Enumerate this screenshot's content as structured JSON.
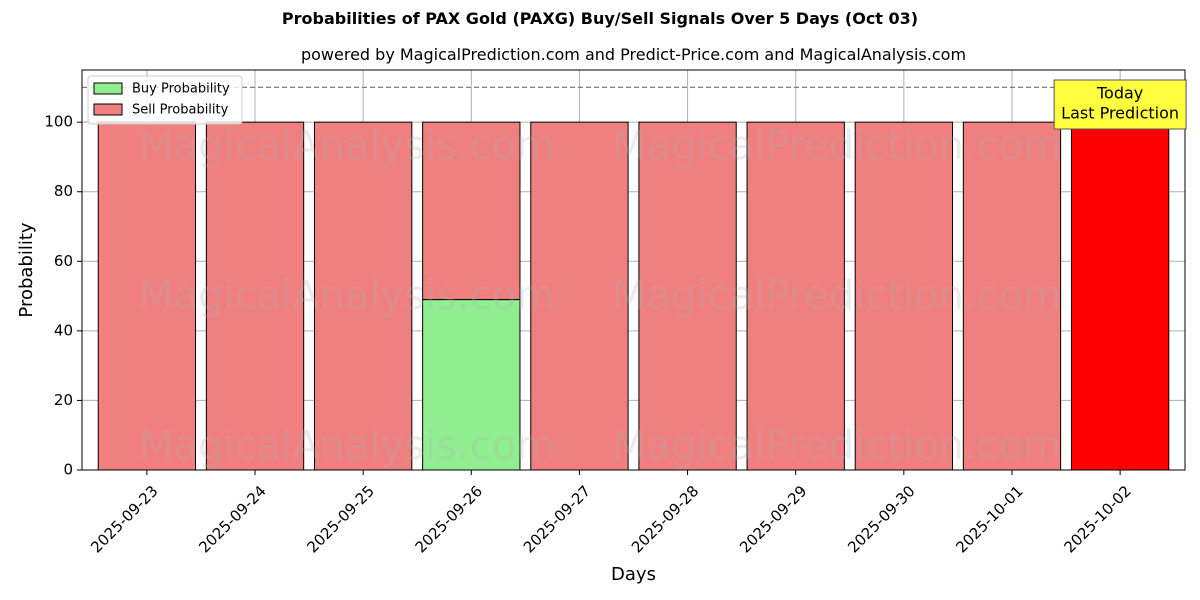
{
  "chart_data": {
    "type": "bar",
    "title": "Probabilities of PAX Gold (PAXG) Buy/Sell Signals Over 5 Days (Oct 03)",
    "subtitle": "powered by MagicalPrediction.com and Predict-Price.com and MagicalAnalysis.com",
    "xlabel": "Days",
    "ylabel": "Probability",
    "categories": [
      "2025-09-23",
      "2025-09-24",
      "2025-09-25",
      "2025-09-26",
      "2025-09-27",
      "2025-09-28",
      "2025-09-29",
      "2025-09-30",
      "2025-10-01",
      "2025-10-02"
    ],
    "series": [
      {
        "name": "Buy Probability",
        "color": "#90ee90",
        "values": [
          0,
          0,
          0,
          49,
          0,
          0,
          0,
          0,
          0,
          0
        ]
      },
      {
        "name": "Sell Probability",
        "color": "#f08080",
        "values": [
          100,
          100,
          100,
          51,
          100,
          100,
          100,
          100,
          100,
          100
        ]
      }
    ],
    "highlight_color": "#ff0000",
    "highlight_index": 9,
    "ylim": [
      0,
      115
    ],
    "yticks": [
      0,
      20,
      40,
      60,
      80,
      100
    ],
    "reference_line": 110,
    "grid": true,
    "legend_position": "top-left",
    "annotation": {
      "lines": [
        "Today",
        "Last Prediction"
      ],
      "color": "#ffff40"
    },
    "watermarks": [
      "MagicalAnalysis.com",
      "MagicalPrediction.com"
    ]
  }
}
